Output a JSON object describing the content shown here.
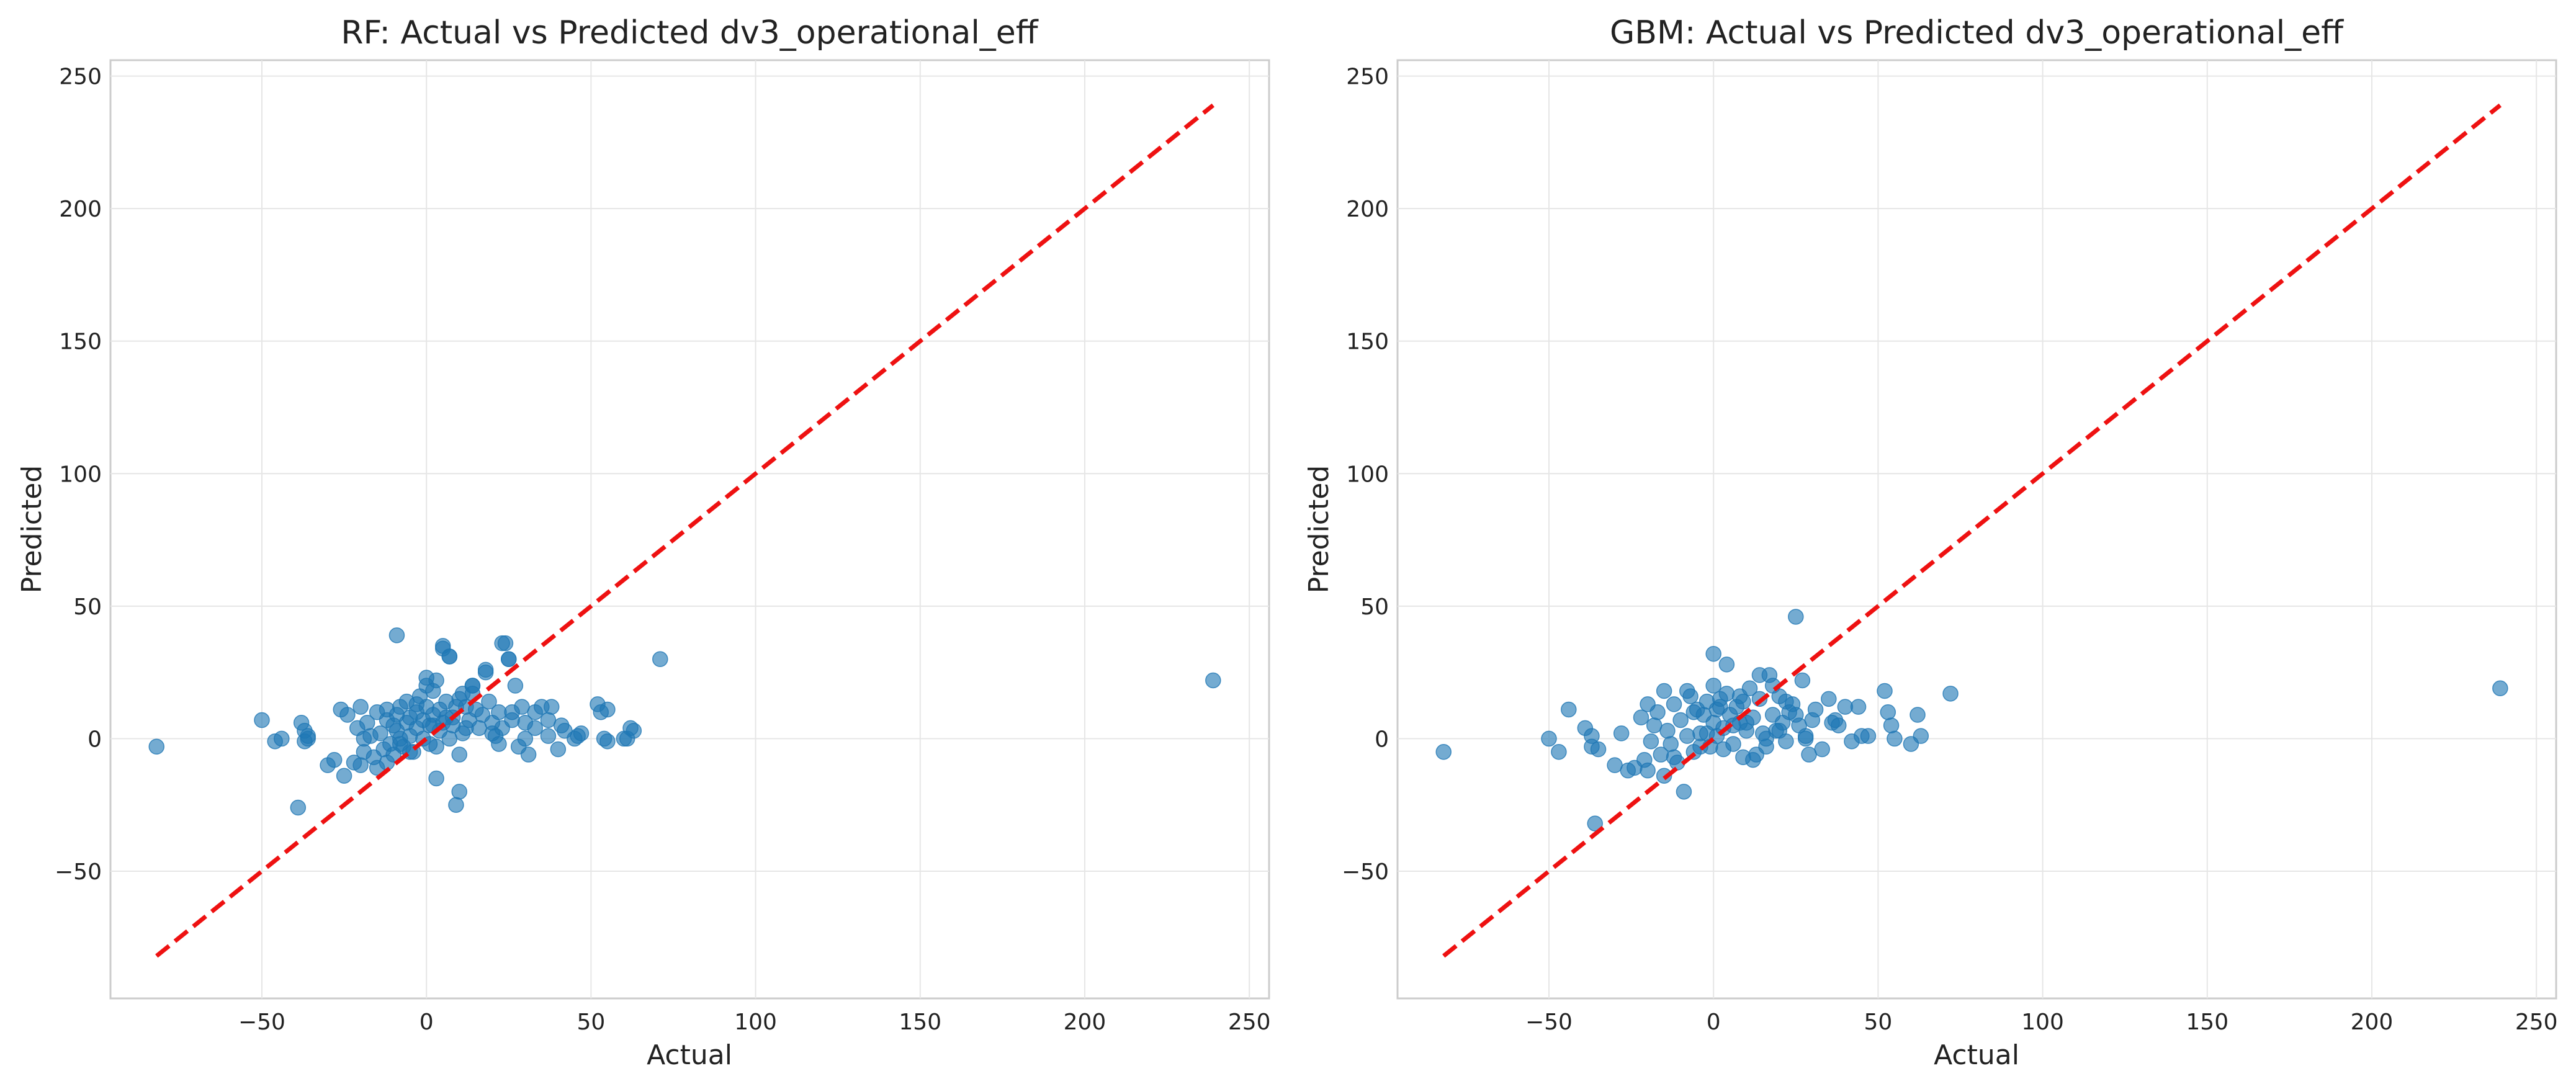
{
  "chart_data": [
    {
      "type": "scatter",
      "title": "RF: Actual vs Predicted dv3_operational_eff",
      "xlabel": "Actual",
      "ylabel": "Predicted",
      "xlim": [
        -96,
        256
      ],
      "ylim": [
        -98,
        256
      ],
      "xticks": [
        -50,
        0,
        50,
        100,
        150,
        200,
        250
      ],
      "yticks": [
        -50,
        0,
        50,
        100,
        150,
        200,
        250
      ],
      "tick_labels_x": [
        "−50",
        "0",
        "50",
        "100",
        "150",
        "200",
        "250"
      ],
      "tick_labels_y": [
        "−50",
        "0",
        "50",
        "100",
        "150",
        "200",
        "250"
      ],
      "grid": true,
      "series": [
        {
          "marker": "circle",
          "color": "#1f77b4",
          "x": [
            -82,
            -50,
            -46,
            -44,
            -38,
            -37,
            -37,
            -36,
            -39,
            -36,
            -28,
            -25,
            -24,
            -22,
            -21,
            -20,
            -19,
            -19,
            -18,
            -17,
            -16,
            -15,
            -14,
            -13,
            -12,
            -12,
            -11,
            -10,
            -10,
            -9,
            -9,
            -8,
            -8,
            -7,
            -6,
            -6,
            -5,
            -5,
            -4,
            -3,
            -3,
            -2,
            -1,
            -1,
            0,
            0,
            1,
            1,
            2,
            2,
            3,
            3,
            4,
            4,
            5,
            5,
            6,
            7,
            7,
            8,
            8,
            9,
            10,
            11,
            11,
            12,
            13,
            14,
            15,
            16,
            17,
            18,
            19,
            20,
            21,
            22,
            23,
            24,
            25,
            26,
            27,
            28,
            29,
            30,
            31,
            33,
            35,
            37,
            38,
            40,
            42,
            45,
            47,
            52,
            53,
            54,
            55,
            60,
            62,
            63,
            71,
            239,
            -9,
            5,
            7,
            23,
            25,
            18,
            14,
            10,
            9,
            2,
            -26,
            -20,
            -12,
            -8,
            -3,
            0,
            3,
            6,
            10,
            14,
            20,
            26,
            33,
            37,
            41,
            55,
            -30,
            -15,
            -5,
            12,
            22,
            30,
            46,
            61
          ],
          "y": [
            -3,
            7,
            -1,
            0,
            6,
            3,
            -1,
            0,
            -26,
            1,
            -8,
            -14,
            9,
            -9,
            4,
            12,
            0,
            -5,
            6,
            1,
            -7,
            10,
            2,
            -4,
            11,
            7,
            -2,
            5,
            -6,
            9,
            3,
            0,
            12,
            -3,
            6,
            14,
            1,
            8,
            -5,
            10,
            4,
            16,
            0,
            7,
            20,
            12,
            -2,
            5,
            18,
            9,
            -15,
            22,
            3,
            11,
            6,
            34,
            14,
            0,
            31,
            8,
            5,
            -25,
            -20,
            17,
            2,
            12,
            7,
            20,
            11,
            4,
            9,
            26,
            14,
            6,
            1,
            10,
            4,
            36,
            30,
            7,
            20,
            -3,
            12,
            6,
            -6,
            10,
            12,
            1,
            12,
            -4,
            3,
            0,
            2,
            13,
            10,
            0,
            11,
            0,
            4,
            3,
            30,
            22,
            39,
            35,
            31,
            36,
            30,
            25,
            20,
            15,
            12,
            5,
            11,
            -10,
            -9,
            -2,
            13,
            23,
            -3,
            8,
            -6,
            17,
            2,
            10,
            4,
            7,
            5,
            -1,
            -10,
            -11,
            -5,
            4,
            -2,
            0,
            1,
            0
          ]
        },
        {
          "type": "line",
          "style": "dashed",
          "color": "#ee1111",
          "x": [
            -82,
            239
          ],
          "y": [
            -82,
            239
          ]
        }
      ]
    },
    {
      "type": "scatter",
      "title": "GBM: Actual vs Predicted dv3_operational_eff",
      "xlabel": "Actual",
      "ylabel": "Predicted",
      "xlim": [
        -96,
        256
      ],
      "ylim": [
        -98,
        256
      ],
      "xticks": [
        -50,
        0,
        50,
        100,
        150,
        200,
        250
      ],
      "yticks": [
        -50,
        0,
        50,
        100,
        150,
        200,
        250
      ],
      "tick_labels_x": [
        "−50",
        "0",
        "50",
        "100",
        "150",
        "200",
        "250"
      ],
      "tick_labels_y": [
        "−50",
        "0",
        "50",
        "100",
        "150",
        "200",
        "250"
      ],
      "grid": true,
      "series": [
        {
          "marker": "circle",
          "color": "#1f77b4",
          "x": [
            -82,
            -50,
            -47,
            -44,
            -39,
            -37,
            -37,
            -36,
            -35,
            -28,
            -26,
            -24,
            -22,
            -21,
            -20,
            -19,
            -18,
            -17,
            -16,
            -15,
            -14,
            -13,
            -12,
            -11,
            -10,
            -9,
            -8,
            -7,
            -6,
            -5,
            -4,
            -3,
            -2,
            -1,
            0,
            0,
            1,
            1,
            2,
            3,
            4,
            5,
            6,
            7,
            8,
            9,
            10,
            11,
            12,
            13,
            14,
            15,
            16,
            17,
            18,
            19,
            20,
            21,
            22,
            23,
            24,
            25,
            26,
            27,
            28,
            29,
            30,
            31,
            33,
            35,
            37,
            38,
            40,
            42,
            44,
            47,
            52,
            53,
            54,
            55,
            60,
            62,
            63,
            72,
            239,
            0,
            4,
            9,
            14,
            18,
            25,
            -8,
            -4,
            2,
            6,
            -20,
            -12,
            -6,
            3,
            10,
            16,
            22,
            -30,
            -15,
            -2,
            8,
            12,
            20,
            28,
            36,
            45
          ],
          "y": [
            -5,
            0,
            -5,
            11,
            4,
            1,
            -3,
            -32,
            -4,
            2,
            -12,
            -11,
            8,
            -8,
            13,
            -1,
            5,
            10,
            -6,
            18,
            3,
            -2,
            13,
            -9,
            7,
            -20,
            1,
            16,
            -5,
            11,
            2,
            9,
            14,
            -3,
            6,
            20,
            11,
            1,
            15,
            4,
            17,
            9,
            -2,
            12,
            6,
            14,
            3,
            19,
            8,
            -6,
            24,
            2,
            -3,
            24,
            9,
            3,
            16,
            6,
            -1,
            10,
            13,
            46,
            5,
            22,
            1,
            -6,
            7,
            11,
            -4,
            15,
            7,
            5,
            12,
            -1,
            12,
            1,
            18,
            10,
            5,
            0,
            -2,
            9,
            1,
            17,
            19,
            32,
            28,
            -7,
            15,
            20,
            9,
            18,
            -3,
            12,
            5,
            -12,
            -7,
            10,
            -4,
            6,
            0,
            14,
            -10,
            -14,
            2,
            16,
            -8,
            3,
            0,
            6,
            1
          ]
        },
        {
          "type": "line",
          "style": "dashed",
          "color": "#ee1111",
          "x": [
            -82,
            239
          ],
          "y": [
            -82,
            239
          ]
        }
      ]
    }
  ]
}
